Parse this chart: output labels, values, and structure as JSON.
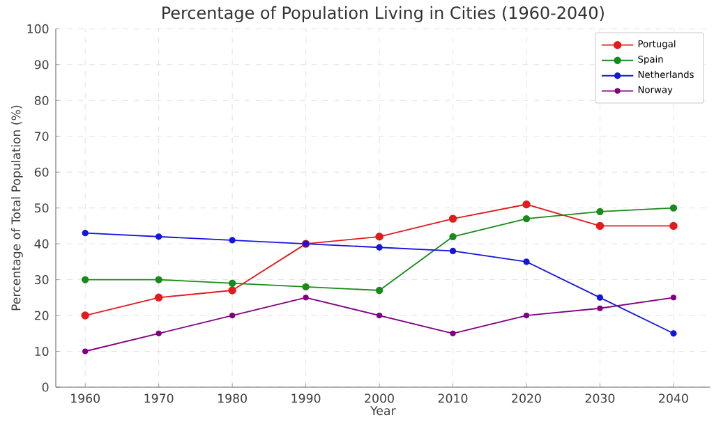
{
  "chart_data": {
    "type": "line",
    "title": "Percentage of Population Living in Cities (1960-2040)",
    "xlabel": "Year",
    "ylabel": "Percentage of Total Population (%)",
    "x": [
      1960,
      1970,
      1980,
      1990,
      2000,
      2010,
      2020,
      2030,
      2040
    ],
    "series": [
      {
        "name": "Portugal",
        "color": "#e41a1c",
        "values": [
          20,
          25,
          27,
          40,
          42,
          47,
          51,
          45,
          45
        ]
      },
      {
        "name": "Spain",
        "color": "#1a8a1a",
        "values": [
          30,
          30,
          29,
          28,
          27,
          42,
          47,
          49,
          50
        ]
      },
      {
        "name": "Netherlands",
        "color": "#1515e0",
        "values": [
          43,
          42,
          41,
          40,
          39,
          38,
          35,
          25,
          15
        ]
      },
      {
        "name": "Norway",
        "color": "#800080",
        "values": [
          10,
          15,
          20,
          25,
          20,
          15,
          20,
          22,
          25
        ]
      }
    ],
    "xlim": [
      1956,
      2045
    ],
    "ylim": [
      0,
      100
    ],
    "xticks": [
      1960,
      1970,
      1980,
      1990,
      2000,
      2010,
      2020,
      2030,
      2040
    ],
    "yticks": [
      0,
      10,
      20,
      30,
      40,
      50,
      60,
      70,
      80,
      90,
      100
    ],
    "grid": true,
    "legend": "top right",
    "marker": "circle",
    "line_style": "solid"
  }
}
